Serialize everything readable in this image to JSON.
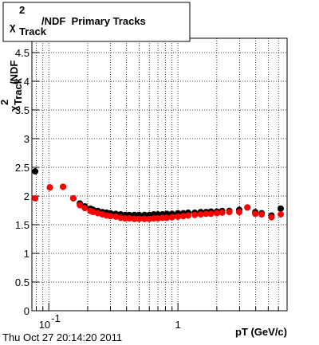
{
  "chart_data": {
    "type": "scatter",
    "title": {
      "base": "χ",
      "sup": "2",
      "sub": "Track",
      "rest": "/NDF  Primary Tracks"
    },
    "ylabel": {
      "base": "χ",
      "sup": "2",
      "sub": "Track",
      "rest": "/NDF"
    },
    "xlabel": "pT (GeV/c)",
    "footer": "Thu Oct 27 20:14:20 2011",
    "xlog": true,
    "grid": true,
    "xlim": [
      0.074,
      7.0
    ],
    "ylim": [
      0,
      4.75
    ],
    "xticks": [
      {
        "value": 0.1,
        "label": "10",
        "sup": "-1"
      },
      1
    ],
    "xminor": [
      0.08,
      0.09,
      0.2,
      0.3,
      0.4,
      0.5,
      0.6,
      0.7,
      0.8,
      0.9,
      2,
      3,
      4,
      5,
      6,
      7
    ],
    "yticks": [
      0,
      0.5,
      1,
      1.5,
      2,
      2.5,
      3,
      3.5,
      4,
      4.5
    ],
    "x": [
      0.0785,
      0.102,
      0.129,
      0.155,
      0.174,
      0.19,
      0.21,
      0.22,
      0.24,
      0.26,
      0.28,
      0.3,
      0.33,
      0.36,
      0.39,
      0.42,
      0.46,
      0.5,
      0.55,
      0.6,
      0.65,
      0.7,
      0.76,
      0.82,
      0.9,
      1.0,
      1.1,
      1.2,
      1.35,
      1.5,
      1.65,
      1.8,
      2.0,
      2.2,
      2.5,
      2.98,
      3.45,
      3.97,
      4.45,
      5.3,
      6.25
    ],
    "series": [
      {
        "color": "#000000",
        "values": [
          2.43,
          2.15,
          2.16,
          1.96,
          1.87,
          1.82,
          1.78,
          1.76,
          1.74,
          1.72,
          1.71,
          1.7,
          1.69,
          1.68,
          1.67,
          1.67,
          1.67,
          1.67,
          1.67,
          1.67,
          1.68,
          1.68,
          1.68,
          1.69,
          1.69,
          1.7,
          1.7,
          1.71,
          1.71,
          1.72,
          1.72,
          1.73,
          1.73,
          1.74,
          1.74,
          1.76,
          1.8,
          1.72,
          1.7,
          1.66,
          1.78
        ]
      },
      {
        "color": "#ff0000",
        "values": [
          1.96,
          2.15,
          2.16,
          1.96,
          1.84,
          1.79,
          1.74,
          1.72,
          1.7,
          1.68,
          1.66,
          1.65,
          1.64,
          1.62,
          1.61,
          1.61,
          1.6,
          1.6,
          1.6,
          1.6,
          1.61,
          1.61,
          1.62,
          1.62,
          1.63,
          1.64,
          1.65,
          1.66,
          1.67,
          1.68,
          1.69,
          1.69,
          1.7,
          1.71,
          1.72,
          1.72,
          1.8,
          1.69,
          1.68,
          1.63,
          1.68
        ]
      }
    ]
  }
}
